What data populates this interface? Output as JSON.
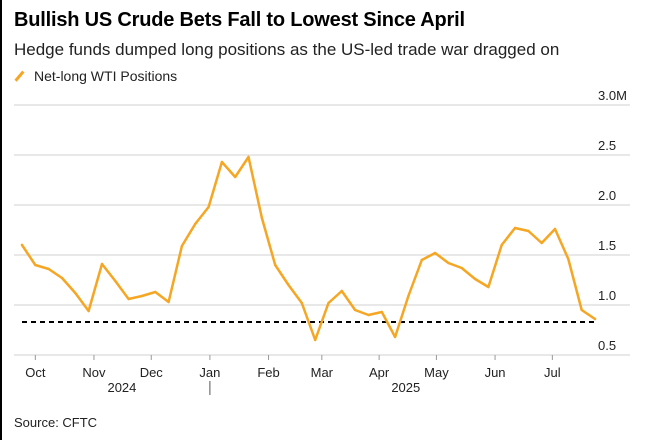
{
  "title": "Bullish US Crude Bets Fall to Lowest Since April",
  "subtitle": "Hedge funds dumped long positions as the US-led trade war dragged on",
  "source": "Source: CFTC",
  "chart_data": {
    "type": "line",
    "title": "Bullish US Crude Bets Fall to Lowest Since April",
    "subtitle": "Hedge funds dumped long positions as the US-led trade war dragged on",
    "xlabel": "",
    "ylabel": "",
    "ylim": [
      0.5,
      3.0
    ],
    "y_ticks": [
      {
        "value": 3.0,
        "label": "3.0M"
      },
      {
        "value": 2.5,
        "label": "2.5"
      },
      {
        "value": 2.0,
        "label": "2.0"
      },
      {
        "value": 1.5,
        "label": "1.5"
      },
      {
        "value": 1.0,
        "label": "1.0"
      },
      {
        "value": 0.5,
        "label": "0.5"
      }
    ],
    "grid": true,
    "legend": "top-left",
    "x_range": [
      0,
      43.5
    ],
    "month_ticks": [
      {
        "x": 1,
        "label": "Oct"
      },
      {
        "x": 5.4,
        "label": "Nov"
      },
      {
        "x": 9.7,
        "label": "Dec"
      },
      {
        "x": 14.1,
        "label": "Jan"
      },
      {
        "x": 18.5,
        "label": "Feb"
      },
      {
        "x": 22.5,
        "label": "Mar"
      },
      {
        "x": 26.8,
        "label": "Apr"
      },
      {
        "x": 31.1,
        "label": "May"
      },
      {
        "x": 35.5,
        "label": "Jun"
      },
      {
        "x": 39.8,
        "label": "Jul"
      }
    ],
    "year_labels": [
      {
        "x": 7.5,
        "label": "2024"
      },
      {
        "x": 28.8,
        "label": "2025"
      }
    ],
    "year_divider_x": 14.1,
    "reference_line": {
      "value": 0.83,
      "style": "dashed",
      "color": "#000000"
    },
    "series": [
      {
        "name": "Net-long WTI Positions",
        "color": "#f5a623",
        "x": [
          0,
          1,
          2,
          3,
          4,
          5,
          6,
          7,
          8,
          9,
          10,
          11,
          12,
          13,
          14,
          15,
          16,
          17,
          18,
          19,
          20,
          21,
          22,
          23,
          24,
          25,
          26,
          27,
          28,
          29,
          30,
          31,
          32,
          33,
          34,
          35,
          36,
          37,
          38,
          39,
          40,
          41,
          42,
          43
        ],
        "values": [
          1.6,
          1.4,
          1.36,
          1.27,
          1.12,
          0.94,
          1.41,
          1.24,
          1.06,
          1.09,
          1.13,
          1.03,
          1.59,
          1.81,
          1.98,
          2.43,
          2.28,
          2.48,
          1.87,
          1.4,
          1.2,
          1.02,
          0.65,
          1.02,
          1.14,
          0.95,
          0.9,
          0.93,
          0.68,
          1.09,
          1.45,
          1.52,
          1.42,
          1.37,
          1.26,
          1.18,
          1.6,
          1.77,
          1.74,
          1.62,
          1.76,
          1.46,
          0.95,
          0.86
        ]
      }
    ]
  }
}
